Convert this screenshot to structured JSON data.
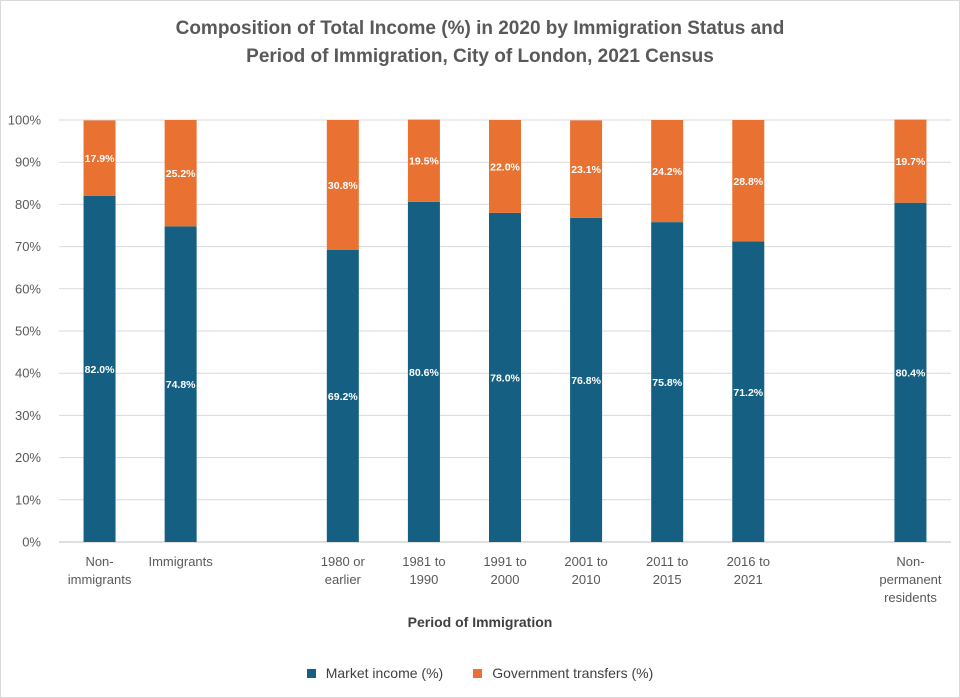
{
  "chart_data": {
    "type": "bar",
    "stacked": true,
    "title": [
      "Composition of Total Income (%) in 2020 by Immigration Status and",
      "Period of Immigration, City of London, 2021 Census"
    ],
    "xlabel": "Period of Immigration",
    "ylabel": "",
    "ylim": [
      0,
      100
    ],
    "yticks": [
      "0%",
      "10%",
      "20%",
      "30%",
      "40%",
      "50%",
      "60%",
      "70%",
      "80%",
      "90%",
      "100%"
    ],
    "grid": true,
    "categories": [
      [
        "Non-",
        "immigrants"
      ],
      [
        "Immigrants"
      ],
      [],
      [
        "1980 or",
        "earlier"
      ],
      [
        "1981 to",
        "1990"
      ],
      [
        "1991 to",
        "2000"
      ],
      [
        "2001 to",
        "2010"
      ],
      [
        "2011 to",
        "2015"
      ],
      [
        "2016 to",
        "2021"
      ],
      [],
      [
        "Non-",
        "permanent",
        "residents"
      ]
    ],
    "series": [
      {
        "name": "Market income (%)",
        "color": "#156082",
        "values": [
          82.0,
          74.8,
          null,
          69.2,
          80.6,
          78.0,
          76.8,
          75.8,
          71.2,
          null,
          80.4
        ],
        "labels": [
          "82.0%",
          "74.8%",
          null,
          "69.2%",
          "80.6%",
          "78.0%",
          "76.8%",
          "75.8%",
          "71.2%",
          null,
          "80.4%"
        ]
      },
      {
        "name": "Government transfers (%)",
        "color": "#E97132",
        "values": [
          17.9,
          25.2,
          null,
          30.8,
          19.5,
          22.0,
          23.1,
          24.2,
          28.8,
          null,
          19.7
        ],
        "labels": [
          "17.9%",
          "25.2%",
          null,
          "30.8%",
          "19.5%",
          "22.0%",
          "23.1%",
          "24.2%",
          "28.8%",
          null,
          "19.7%"
        ]
      }
    ],
    "legend": "bottom"
  }
}
